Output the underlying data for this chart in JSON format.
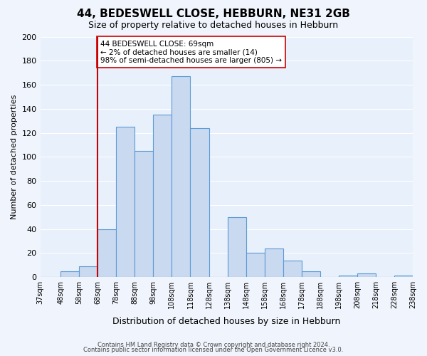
{
  "title": "44, BEDESWELL CLOSE, HEBBURN, NE31 2GB",
  "subtitle": "Size of property relative to detached houses in Hebburn",
  "xlabel": "Distribution of detached houses by size in Hebburn",
  "ylabel": "Number of detached properties",
  "bin_edges": [
    37,
    48,
    58,
    68,
    78,
    88,
    98,
    108,
    118,
    128,
    138,
    148,
    158,
    168,
    178,
    188,
    198,
    208,
    218,
    228,
    238
  ],
  "bin_labels": [
    "37sqm",
    "48sqm",
    "58sqm",
    "68sqm",
    "78sqm",
    "88sqm",
    "98sqm",
    "108sqm",
    "118sqm",
    "128sqm",
    "138sqm",
    "148sqm",
    "158sqm",
    "168sqm",
    "178sqm",
    "188sqm",
    "198sqm",
    "208sqm",
    "218sqm",
    "228sqm",
    "238sqm"
  ],
  "counts": [
    0,
    5,
    9,
    40,
    125,
    105,
    135,
    167,
    124,
    0,
    50,
    20,
    24,
    14,
    5,
    0,
    1,
    3,
    0,
    1
  ],
  "bar_color": "#c9d9f0",
  "bar_edge_color": "#5b9bd5",
  "vline_x": 68,
  "vline_color": "#cc0000",
  "annotation_text": "44 BEDESWELL CLOSE: 69sqm\n← 2% of detached houses are smaller (14)\n98% of semi-detached houses are larger (805) →",
  "annotation_box_color": "#ffffff",
  "annotation_box_edge": "#cc0000",
  "ylim": [
    0,
    200
  ],
  "yticks": [
    0,
    20,
    40,
    60,
    80,
    100,
    120,
    140,
    160,
    180,
    200
  ],
  "footer1": "Contains HM Land Registry data © Crown copyright and database right 2024.",
  "footer2": "Contains public sector information licensed under the Open Government Licence v3.0.",
  "plot_bg_color": "#e8f0fb",
  "fig_bg_color": "#f0f4fc"
}
